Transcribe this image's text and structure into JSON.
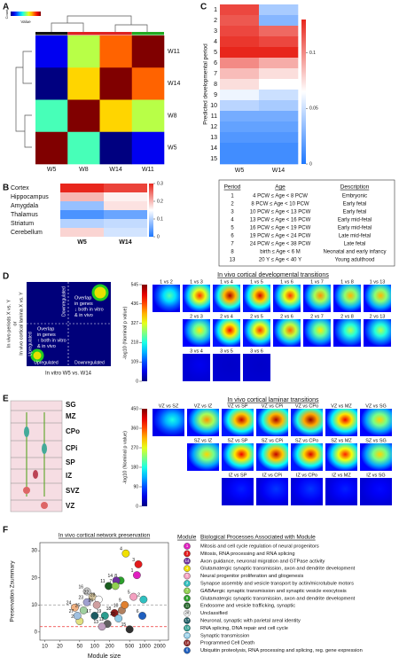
{
  "panel_labels": [
    "A",
    "B",
    "C",
    "D",
    "E",
    "F"
  ],
  "A": {
    "legend_title": "Count",
    "legend_axis": "Value",
    "samples": [
      "W5",
      "W8",
      "W14",
      "W11"
    ],
    "matrix": [
      [
        1,
        0.95,
        0.91,
        0.92
      ],
      [
        0.95,
        1,
        0.97,
        0.96
      ],
      [
        0.91,
        0.97,
        1,
        0.98
      ],
      [
        0.92,
        0.96,
        0.98,
        1
      ]
    ]
  },
  "B": {
    "rows": [
      "Cortex",
      "Hippocampus",
      "Amygdala",
      "Thalamus",
      "Striatum",
      "Cerebellum"
    ],
    "columns": [
      "W5",
      "W14"
    ],
    "values": [
      [
        0.3,
        0.28
      ],
      [
        0.2,
        0.16
      ],
      [
        0.08,
        0.17
      ],
      [
        0.03,
        0.05
      ],
      [
        0.1,
        0.11
      ],
      [
        0.18,
        0.12
      ]
    ],
    "colorbar_ticks": [
      0,
      0.1,
      0.2,
      0.3
    ]
  },
  "C": {
    "y_label": "Predicted developmental period",
    "periods": [
      "1",
      "2",
      "3",
      "4",
      "5",
      "6",
      "7",
      "8",
      "9",
      "10",
      "11",
      "12",
      "13",
      "14",
      "15"
    ],
    "columns": [
      "W5",
      "W14"
    ],
    "values": [
      [
        0.12,
        0.04
      ],
      [
        0.115,
        0.03
      ],
      [
        0.12,
        0.11
      ],
      [
        0.125,
        0.12
      ],
      [
        0.13,
        0.13
      ],
      [
        0.1,
        0.09
      ],
      [
        0.085,
        0.075
      ],
      [
        0.075,
        0.065
      ],
      [
        0.06,
        0.05
      ],
      [
        0.045,
        0.04
      ],
      [
        0.025,
        0.025
      ],
      [
        0.02,
        0.02
      ],
      [
        0.015,
        0.015
      ],
      [
        0.01,
        0.01
      ],
      [
        0.01,
        0.01
      ]
    ],
    "colorbar_ticks": [
      0,
      0.05,
      0.1
    ],
    "table": {
      "header": [
        "Period",
        "Age",
        "Description"
      ],
      "rows": [
        [
          "1",
          "4 PCW ≤ Age < 8 PCW",
          "Embryonic"
        ],
        [
          "2",
          "8 PCW ≤ Age < 10 PCW",
          "Early fetal"
        ],
        [
          "3",
          "10 PCW ≤ Age < 13 PCW",
          "Early fetal"
        ],
        [
          "4",
          "13 PCW ≤ Age < 16 PCW",
          "Early mid-fetal"
        ],
        [
          "5",
          "16 PCW ≤ Age < 19 PCW",
          "Early mid-fetal"
        ],
        [
          "6",
          "19 PCW ≤ Age < 24 PCW",
          "Late mid-fetal"
        ],
        [
          "7",
          "24 PCW ≤ Age < 38 PCW",
          "Late fetal"
        ],
        [
          "8",
          "birth ≤ Age < 6 M",
          "Neonatal and early infancy"
        ],
        [
          "13",
          "20 Y ≤ Age < 40 Y",
          "Young adulthood"
        ]
      ]
    }
  },
  "D": {
    "schematic": {
      "y_label_1": "In vivo periods X vs. Y",
      "y_label_or": "or",
      "y_label_2": "In vivo cortical lamina X vs. Y",
      "x_label": "In vitro W5 vs. W14",
      "down": "Downregulated",
      "up": "Upregulated",
      "overlap_down": [
        "Overlap",
        "in genes",
        "↓ both in vitro",
        "& in vivo"
      ],
      "overlap_up": [
        "Overlap",
        "in genes",
        "↑ both in vitro",
        "& in vivo"
      ]
    },
    "title": "In vivo cortical developmental transitions",
    "colorbar_label": "-log10 (Nominal p value)",
    "colorbar_ticks": [
      0,
      109,
      218,
      327,
      436,
      545
    ],
    "maps": [
      [
        {
          "label": "1 vs 2",
          "peak": 250
        },
        {
          "label": "1 vs 3",
          "peak": 450
        },
        {
          "label": "1 vs 4",
          "peak": 520
        },
        {
          "label": "1 vs 5",
          "peak": 500
        },
        {
          "label": "1 vs 6",
          "peak": 450
        },
        {
          "label": "1 vs 7",
          "peak": 400
        },
        {
          "label": "1 vs 8",
          "peak": 380
        },
        {
          "label": "1 vs 13",
          "peak": 380
        }
      ],
      [
        {
          "label": "2 vs 3",
          "peak": 350
        },
        {
          "label": "2 vs 4",
          "peak": 480
        },
        {
          "label": "2 vs 5",
          "peak": 450
        },
        {
          "label": "2 vs 6",
          "peak": 420
        },
        {
          "label": "2 vs 7",
          "peak": 350
        },
        {
          "label": "2 vs 8",
          "peak": 300
        },
        {
          "label": "2 vs 13",
          "peak": 300
        }
      ],
      [
        {
          "label": "3 vs 4",
          "peak": 60
        },
        {
          "label": "3 vs 5",
          "peak": 40
        },
        {
          "label": "3 vs 6",
          "peak": 40
        }
      ]
    ]
  },
  "E": {
    "layers": [
      "SG",
      "MZ",
      "CPo",
      "CPi",
      "SP",
      "IZ",
      "SVZ",
      "VZ"
    ],
    "title": "In vivo cortical laminar transitions",
    "colorbar_label": "-log10 (Nominal p value)",
    "colorbar_ticks": [
      0,
      90,
      180,
      270,
      360,
      450
    ],
    "maps": [
      [
        {
          "label": "VZ vs SZ",
          "peak": 180
        },
        {
          "label": "VZ vs IZ",
          "peak": 330
        },
        {
          "label": "VZ vs SP",
          "peak": 420
        },
        {
          "label": "VZ vs CPi",
          "peak": 430
        },
        {
          "label": "VZ vs CPo",
          "peak": 440
        },
        {
          "label": "VZ vs MZ",
          "peak": 400
        },
        {
          "label": "VZ vs SG",
          "peak": 300
        }
      ],
      [
        {
          "label": "SZ vs IZ",
          "peak": 300
        },
        {
          "label": "SZ vs SP",
          "peak": 400
        },
        {
          "label": "SZ vs CPi",
          "peak": 420
        },
        {
          "label": "SZ vs CPo",
          "peak": 410
        },
        {
          "label": "SZ vs MZ",
          "peak": 380
        },
        {
          "label": "SZ vs SG",
          "peak": 300
        }
      ],
      [
        {
          "label": "IZ vs SP",
          "peak": 70
        },
        {
          "label": "IZ vs CPi",
          "peak": 80
        },
        {
          "label": "IZ vs CPo",
          "peak": 80
        },
        {
          "label": "IZ vs MZ",
          "peak": 70
        },
        {
          "label": "IZ vs SG",
          "peak": 60
        }
      ]
    ]
  },
  "F": {
    "title": "In vivo cortical network preservation",
    "x_label": "Module size",
    "y_label": "Preservation Zsummary",
    "log_x": true,
    "xlim": [
      8,
      3000
    ],
    "xticks": [
      10,
      20,
      50,
      100,
      200,
      500,
      1000,
      2000
    ],
    "ylim": [
      -3,
      33
    ],
    "yticks": [
      0,
      10,
      20,
      30
    ],
    "thresholds": [
      2,
      10
    ],
    "points": [
      {
        "label": "4",
        "size": 420,
        "z": 29,
        "color": "#f0e000"
      },
      {
        "label": "3",
        "size": 750,
        "z": 25,
        "color": "#e41a1c"
      },
      {
        "label": "1",
        "size": 700,
        "z": 21,
        "color": "#e020c0"
      },
      {
        "label": "8",
        "size": 330,
        "z": 19,
        "color": "#2ca02c"
      },
      {
        "label": "14",
        "size": 270,
        "z": 19,
        "color": "#7030a0"
      },
      {
        "label": "11",
        "size": 190,
        "z": 17,
        "color": "#1b5e20"
      },
      {
        "label": "7",
        "size": 260,
        "z": 17,
        "color": "#90d050"
      },
      {
        "label": "2",
        "size": 950,
        "z": 12,
        "color": "#30c0c0"
      },
      {
        "label": "5",
        "size": 600,
        "z": 13,
        "color": "#f4a0c0"
      },
      {
        "label": "16",
        "size": 70,
        "z": 15,
        "color": "#c8c8c8"
      },
      {
        "label": "22",
        "size": 90,
        "z": 13,
        "color": "#d8c8a0"
      },
      {
        "label": "23",
        "size": 70,
        "z": 11,
        "color": "#a0a0d0"
      },
      {
        "label": "28",
        "size": 120,
        "z": 12,
        "color": "#ffffff"
      },
      {
        "label": "6",
        "size": 900,
        "z": 6,
        "color": "#1f5fbf"
      },
      {
        "label": "18",
        "size": 250,
        "z": 7,
        "color": "#8b1a1a"
      },
      {
        "label": "19",
        "size": 160,
        "z": 6,
        "color": "#2a9d8f"
      },
      {
        "label": "17",
        "size": 100,
        "z": 6,
        "color": "#1d5c63"
      },
      {
        "label": "20",
        "size": 300,
        "z": 5,
        "color": "#8ecae6"
      },
      {
        "label": "10",
        "size": 350,
        "z": 8,
        "color": "#b08060"
      },
      {
        "label": "12",
        "size": 180,
        "z": 3,
        "color": "#606060"
      },
      {
        "label": "13",
        "size": 140,
        "z": 2,
        "color": "#c0a0c0"
      },
      {
        "label": "15",
        "size": 500,
        "z": 1,
        "color": "#303030"
      },
      {
        "label": "21",
        "size": 50,
        "z": 4,
        "color": "#e0e080"
      },
      {
        "label": "24",
        "size": 40,
        "z": 9,
        "color": "#f0b080"
      },
      {
        "label": "25",
        "size": 60,
        "z": 8,
        "color": "#a0d0a0"
      },
      {
        "label": "26",
        "size": 110,
        "z": 10,
        "color": "#d0a0a0"
      },
      {
        "label": "27",
        "size": 45,
        "z": 6,
        "color": "#a0c0e0"
      },
      {
        "label": "9",
        "size": 400,
        "z": 10,
        "color": "#e08030"
      }
    ],
    "legend": {
      "header_module": "Module",
      "header_process": "Biological Processes Associated with Module",
      "items": [
        {
          "module": "1",
          "text": "Mitosis and cell cycle regulation of neural progenitors",
          "color": "#e020c0"
        },
        {
          "module": "3",
          "text": "Mitosis, RNA processing and RNA splicing",
          "color": "#e41a1c"
        },
        {
          "module": "14",
          "text": "Axon guidance, neuronal migration and GTPase activity",
          "color": "#7030a0"
        },
        {
          "module": "4",
          "text": "Glutamatergic synaptic transmission, axon and dendrite development",
          "color": "#f0e000"
        },
        {
          "module": "5",
          "text": "Neural progenitor proliferation and gliogenesis",
          "color": "#f4a0c0"
        },
        {
          "module": "2",
          "text": "Synapse assembly and vesicle transport by actin/microtubule motors",
          "color": "#30c0c0"
        },
        {
          "module": "7",
          "text": "GABAergic synaptic transmission and synaptic vesicle exocytosis",
          "color": "#90d050"
        },
        {
          "module": "8",
          "text": "Glutamatergic synaptic transmission, axon and dendrite development",
          "color": "#2ca02c"
        },
        {
          "module": "11",
          "text": "Endosome and vesicle trafficking, synaptic",
          "color": "#1b5e20"
        },
        {
          "module": "28",
          "text": "Unclassified",
          "color": "#ffffff"
        },
        {
          "module": "17",
          "text": "Neuronal, synaptic with parietal areal identity",
          "color": "#1d5c63"
        },
        {
          "module": "19",
          "text": "RNA splicing, DNA repair and cell cycle",
          "color": "#2a9d8f"
        },
        {
          "module": "20",
          "text": "Synaptic transmission",
          "color": "#8ecae6"
        },
        {
          "module": "18",
          "text": "Programmed Cell Death",
          "color": "#8b1a1a"
        },
        {
          "module": "6",
          "text": "Ubiquitin proteolysis, RNA processing and splicing, reg. gene expression",
          "color": "#1f5fbf"
        }
      ]
    }
  }
}
